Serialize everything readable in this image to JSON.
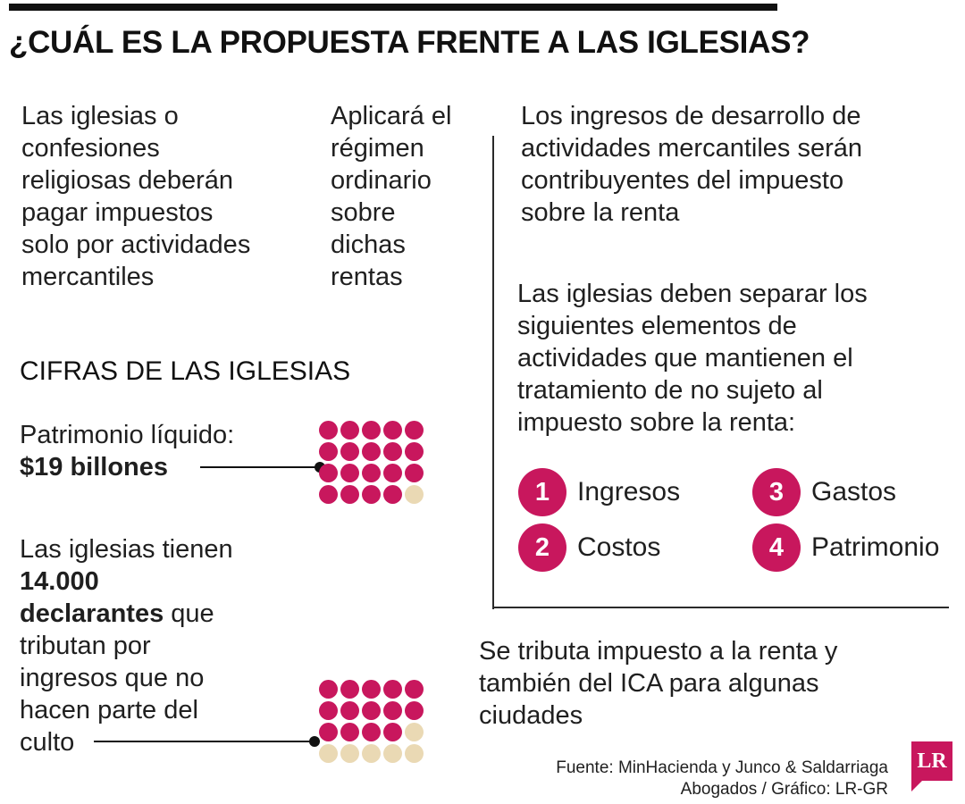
{
  "title": "¿CUÁL ES LA PROPUESTA FRENTE A LAS IGLESIAS?",
  "col1_lines": [
    "Las iglesias o",
    "confesiones",
    "religiosas deberán",
    "pagar impuestos",
    "solo por actividades",
    "mercantiles"
  ],
  "col2_lines": [
    "Aplicará el",
    "régimen",
    "ordinario",
    "sobre",
    "dichas",
    "rentas"
  ],
  "col3_lines": [
    "Los ingresos de desarrollo de",
    "actividades mercantiles serán",
    "contribuyentes del impuesto",
    "sobre la renta"
  ],
  "separate_lines": [
    "Las iglesias deben separar los",
    "siguientes elementos de",
    "actividades que mantienen el",
    "tratamiento de no sujeto al",
    "impuesto sobre la renta:"
  ],
  "elements": [
    {
      "number": "1",
      "label": "Ingresos"
    },
    {
      "number": "3",
      "label": "Gastos"
    },
    {
      "number": "2",
      "label": "Costos"
    },
    {
      "number": "4",
      "label": "Patrimonio"
    }
  ],
  "section_title": "CIFRAS DE LAS IGLESIAS",
  "patrimonio": {
    "label": "Patrimonio líquido:",
    "value": "$19 billones",
    "dots_filled": 19,
    "dots_total": 20
  },
  "declarantes": {
    "line1": "Las iglesias tienen",
    "bold_number": "14.000",
    "bold_word": "declarantes",
    "after_bold": " que",
    "rest_lines": [
      "tributan por",
      "ingresos que no",
      "hacen parte del",
      "culto"
    ],
    "dots_filled": 14,
    "dots_total": 20
  },
  "tax_lines": [
    "Se tributa impuesto a la renta y",
    "también del ICA para algunas",
    "ciudades"
  ],
  "source_lines": [
    "Fuente: MinHacienda y Junco & Saldarriaga",
    "Abogados / Gráfico: LR-GR"
  ],
  "logo_text": "LR",
  "colors": {
    "accent": "#c8175d",
    "dot_empty": "#ead9b4",
    "text": "#1f1f1f"
  }
}
